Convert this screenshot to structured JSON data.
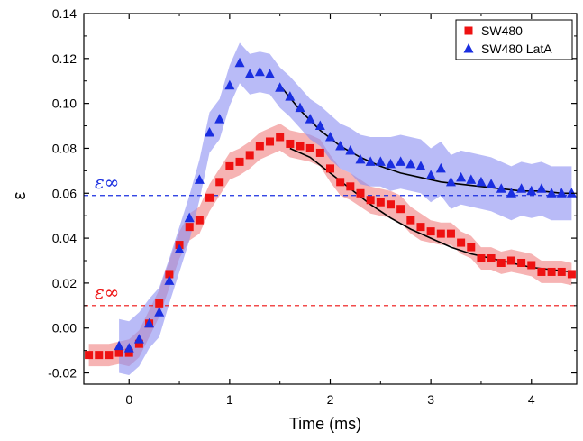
{
  "chart_data": {
    "type": "scatter",
    "xlabel": "Time (ms)",
    "ylabel": "ε",
    "xlim": [
      -0.45,
      4.45
    ],
    "ylim": [
      -0.025,
      0.14
    ],
    "xticks": [
      0,
      1,
      2,
      3,
      4
    ],
    "yticks": [
      -0.02,
      0.0,
      0.02,
      0.04,
      0.06,
      0.08,
      0.1,
      0.12,
      0.14
    ],
    "ytick_labels": [
      "-0.02",
      "0.00",
      "0.02",
      "0.04",
      "0.06",
      "0.08",
      "0.10",
      "0.12",
      "0.14"
    ],
    "xtick_labels": [
      "0",
      "1",
      "2",
      "3",
      "4"
    ],
    "legend_position": "top-right",
    "series": [
      {
        "name": "SW480",
        "marker": "square",
        "color": "#ee1111",
        "band_color": "#f08080",
        "x": [
          -0.4,
          -0.3,
          -0.2,
          -0.1,
          0.0,
          0.1,
          0.2,
          0.3,
          0.4,
          0.5,
          0.6,
          0.7,
          0.8,
          0.9,
          1.0,
          1.1,
          1.2,
          1.3,
          1.4,
          1.5,
          1.6,
          1.7,
          1.8,
          1.9,
          2.0,
          2.1,
          2.2,
          2.3,
          2.4,
          2.5,
          2.6,
          2.7,
          2.8,
          2.9,
          3.0,
          3.1,
          3.2,
          3.3,
          3.4,
          3.5,
          3.6,
          3.7,
          3.8,
          3.9,
          4.0,
          4.1,
          4.2,
          4.3,
          4.4
        ],
        "y": [
          -0.012,
          -0.012,
          -0.012,
          -0.011,
          -0.011,
          -0.007,
          0.002,
          0.011,
          0.024,
          0.037,
          0.045,
          0.048,
          0.058,
          0.065,
          0.072,
          0.074,
          0.077,
          0.081,
          0.083,
          0.085,
          0.082,
          0.081,
          0.08,
          0.078,
          0.071,
          0.065,
          0.063,
          0.06,
          0.057,
          0.056,
          0.055,
          0.053,
          0.048,
          0.045,
          0.043,
          0.042,
          0.042,
          0.038,
          0.036,
          0.031,
          0.031,
          0.029,
          0.03,
          0.029,
          0.028,
          0.025,
          0.025,
          0.025,
          0.024
        ],
        "band_halfwidth": [
          0.005,
          0.005,
          0.005,
          0.005,
          0.006,
          0.006,
          0.006,
          0.006,
          0.006,
          0.006,
          0.006,
          0.006,
          0.006,
          0.006,
          0.006,
          0.006,
          0.006,
          0.006,
          0.006,
          0.006,
          0.006,
          0.006,
          0.006,
          0.006,
          0.006,
          0.006,
          0.006,
          0.006,
          0.006,
          0.006,
          0.006,
          0.006,
          0.006,
          0.006,
          0.005,
          0.005,
          0.005,
          0.005,
          0.005,
          0.005,
          0.005,
          0.005,
          0.005,
          0.005,
          0.005,
          0.005,
          0.005,
          0.005,
          0.005
        ]
      },
      {
        "name": "SW480 LatA",
        "marker": "triangle",
        "color": "#1a2ee0",
        "band_color": "#8a8ef2",
        "x": [
          -0.1,
          0.0,
          0.1,
          0.2,
          0.3,
          0.4,
          0.5,
          0.6,
          0.7,
          0.8,
          0.9,
          1.0,
          1.1,
          1.2,
          1.3,
          1.4,
          1.5,
          1.6,
          1.7,
          1.8,
          1.9,
          2.0,
          2.1,
          2.2,
          2.3,
          2.4,
          2.5,
          2.6,
          2.7,
          2.8,
          2.9,
          3.0,
          3.1,
          3.2,
          3.3,
          3.4,
          3.5,
          3.6,
          3.7,
          3.8,
          3.9,
          4.0,
          4.1,
          4.2,
          4.3,
          4.4
        ],
        "y": [
          -0.008,
          -0.009,
          -0.005,
          0.002,
          0.007,
          0.021,
          0.035,
          0.049,
          0.066,
          0.087,
          0.093,
          0.108,
          0.118,
          0.113,
          0.114,
          0.113,
          0.107,
          0.103,
          0.098,
          0.093,
          0.09,
          0.085,
          0.081,
          0.079,
          0.075,
          0.074,
          0.074,
          0.073,
          0.074,
          0.073,
          0.072,
          0.068,
          0.071,
          0.065,
          0.067,
          0.066,
          0.065,
          0.064,
          0.062,
          0.06,
          0.062,
          0.061,
          0.062,
          0.06,
          0.06,
          0.06
        ],
        "band_halfwidth": [
          0.012,
          0.012,
          0.012,
          0.011,
          0.011,
          0.01,
          0.01,
          0.01,
          0.009,
          0.009,
          0.009,
          0.009,
          0.009,
          0.009,
          0.009,
          0.009,
          0.009,
          0.009,
          0.009,
          0.009,
          0.009,
          0.01,
          0.01,
          0.01,
          0.011,
          0.011,
          0.011,
          0.012,
          0.012,
          0.012,
          0.012,
          0.012,
          0.012,
          0.012,
          0.012,
          0.012,
          0.012,
          0.012,
          0.012,
          0.012,
          0.012,
          0.012,
          0.012,
          0.012,
          0.012,
          0.012
        ]
      }
    ],
    "fit_curves": [
      {
        "series": "SW480",
        "color": "#000000",
        "x": [
          1.6,
          1.8,
          2.0,
          2.2,
          2.4,
          2.6,
          2.8,
          3.0,
          3.2,
          3.4,
          3.6,
          3.8,
          4.0,
          4.2,
          4.4
        ],
        "y": [
          0.08,
          0.076,
          0.069,
          0.062,
          0.055,
          0.049,
          0.044,
          0.04,
          0.036,
          0.033,
          0.031,
          0.029,
          0.027,
          0.026,
          0.025
        ]
      },
      {
        "series": "SW480 LatA",
        "color": "#000000",
        "x": [
          1.5,
          1.7,
          1.9,
          2.1,
          2.3,
          2.5,
          2.7,
          2.9,
          3.1,
          3.3,
          3.5,
          3.7,
          3.9,
          4.1,
          4.3,
          4.4
        ],
        "y": [
          0.108,
          0.097,
          0.088,
          0.081,
          0.076,
          0.072,
          0.069,
          0.067,
          0.065,
          0.064,
          0.063,
          0.062,
          0.061,
          0.061,
          0.06,
          0.06
        ]
      }
    ],
    "reference_lines": [
      {
        "label": "ε∞",
        "y": 0.059,
        "color": "#1a2ee0",
        "style": "dashed"
      },
      {
        "label": "ε∞",
        "y": 0.01,
        "color": "#ee1111",
        "style": "dashed"
      }
    ]
  }
}
